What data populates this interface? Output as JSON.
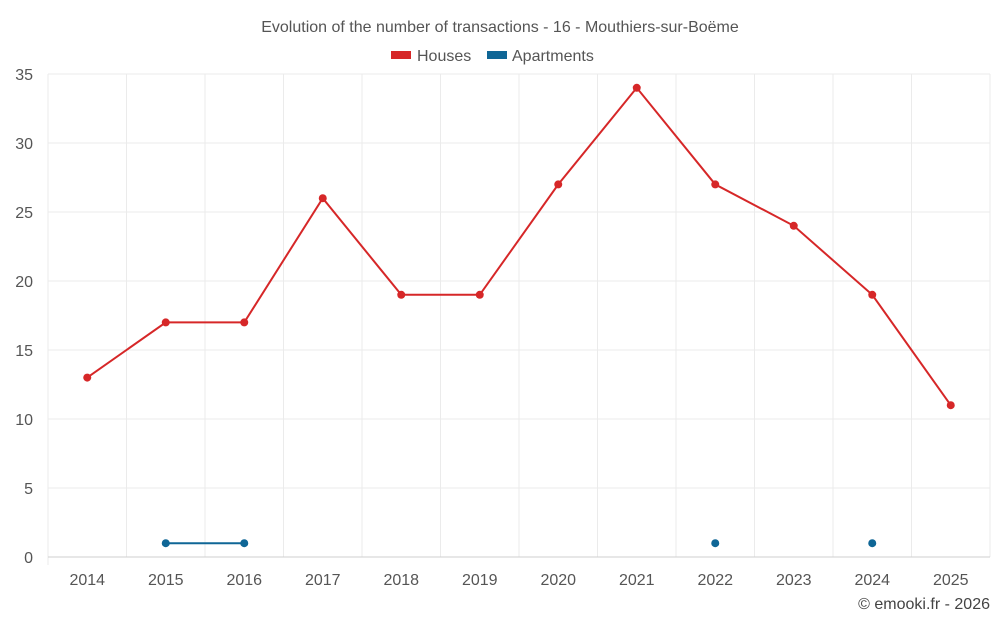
{
  "chart_data": {
    "type": "line",
    "title": "Evolution of the number of transactions - 16 - Mouthiers-sur-Boëme",
    "categories": [
      "2014",
      "2015",
      "2016",
      "2017",
      "2018",
      "2019",
      "2020",
      "2021",
      "2022",
      "2023",
      "2024",
      "2025"
    ],
    "series": [
      {
        "name": "Houses",
        "color": "#d62728",
        "values": [
          13,
          17,
          17,
          26,
          19,
          19,
          27,
          34,
          27,
          24,
          19,
          11
        ]
      },
      {
        "name": "Apartments",
        "color": "#0f6696",
        "values": [
          null,
          1,
          1,
          null,
          null,
          null,
          null,
          null,
          1,
          null,
          1,
          null
        ]
      }
    ],
    "ylim": [
      0,
      35
    ],
    "yticks": [
      "0",
      "5",
      "10",
      "15",
      "20",
      "25",
      "30",
      "35"
    ],
    "xlabel": "",
    "ylabel": "",
    "grid": true,
    "legend": "top-center"
  },
  "credit": "© emooki.fr - 2026"
}
